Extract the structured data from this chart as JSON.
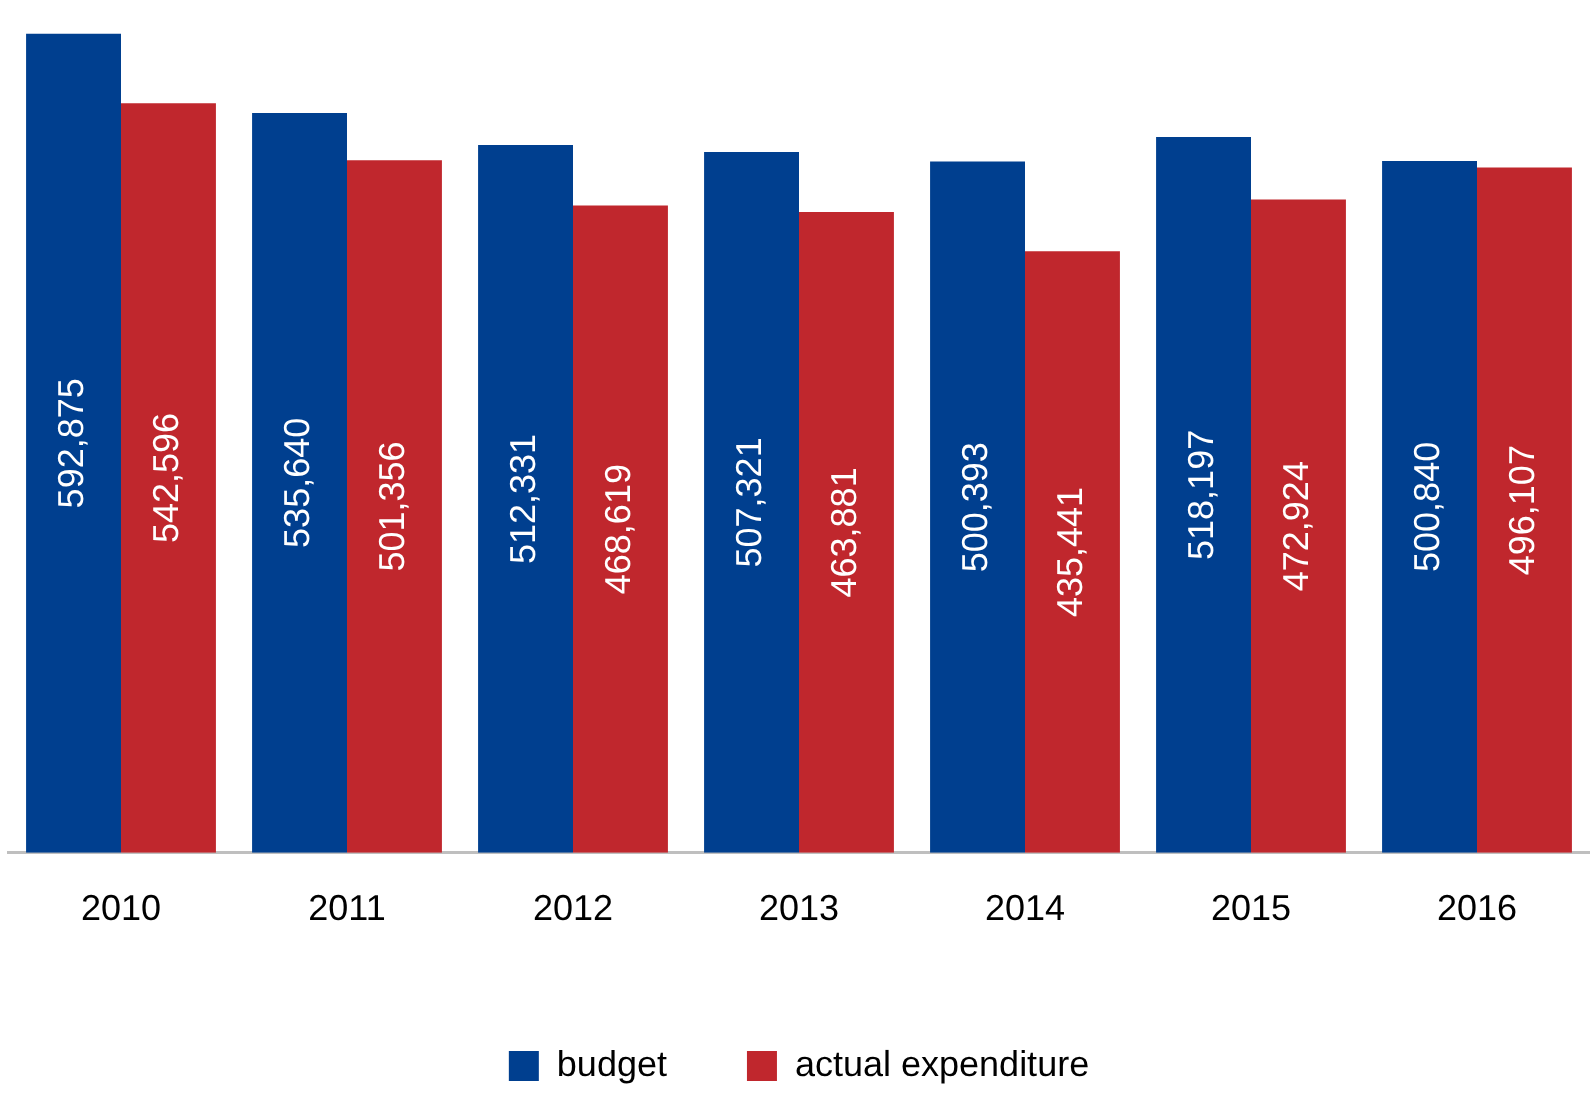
{
  "chart_data": {
    "type": "bar",
    "categories": [
      "2010",
      "2011",
      "2012",
      "2013",
      "2014",
      "2015",
      "2016"
    ],
    "series": [
      {
        "name": "budget",
        "color": "#003f8f",
        "values": [
          592875,
          535640,
          512331,
          507321,
          500393,
          518197,
          500840
        ],
        "value_labels": [
          "592,875",
          "535,640",
          "512,331",
          "507,321",
          "500,393",
          "518,197",
          "500,840"
        ]
      },
      {
        "name": "actual expenditure",
        "color": "#c0272d",
        "values": [
          542596,
          501356,
          468619,
          463881,
          435441,
          472924,
          496107
        ],
        "value_labels": [
          "542,596",
          "501,356",
          "468,619",
          "463,881",
          "435,441",
          "472,924",
          "496,107"
        ]
      }
    ],
    "grid": false,
    "legend": "bottom"
  }
}
